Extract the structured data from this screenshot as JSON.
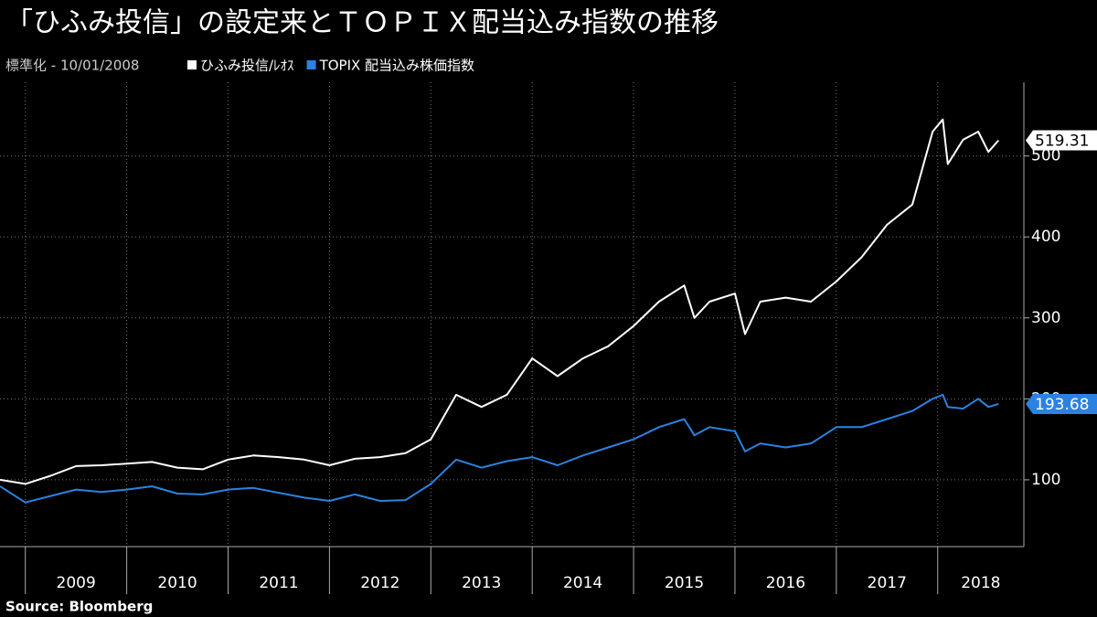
{
  "chart_data": {
    "type": "line",
    "title": "「ひふみ投信」の設定来とＴＯＰＩＸ配当込み指数の推移",
    "subtitle": "標準化 - 10/01/2008",
    "source": "Source:  Bloomberg",
    "x": [
      2008.75,
      2009.0,
      2009.25,
      2009.5,
      2009.75,
      2010.0,
      2010.25,
      2010.5,
      2010.75,
      2011.0,
      2011.25,
      2011.5,
      2011.75,
      2012.0,
      2012.25,
      2012.5,
      2012.75,
      2013.0,
      2013.25,
      2013.5,
      2013.75,
      2014.0,
      2014.25,
      2014.5,
      2014.75,
      2015.0,
      2015.25,
      2015.5,
      2015.6,
      2015.75,
      2016.0,
      2016.1,
      2016.25,
      2016.5,
      2016.75,
      2017.0,
      2017.25,
      2017.5,
      2017.75,
      2017.95,
      2018.05,
      2018.1,
      2018.25,
      2018.4,
      2018.5,
      2018.6
    ],
    "series": [
      {
        "name": "ひふみ投信/ﾚｵｽ",
        "color": "#ffffff",
        "values": [
          100,
          95,
          105,
          117,
          118,
          120,
          122,
          115,
          113,
          125,
          130,
          128,
          125,
          118,
          126,
          128,
          133,
          150,
          205,
          190,
          205,
          250,
          228,
          250,
          265,
          290,
          320,
          340,
          300,
          320,
          330,
          280,
          320,
          325,
          320,
          345,
          375,
          415,
          440,
          530,
          545,
          490,
          520,
          530,
          505,
          519.31
        ]
      },
      {
        "name": "TOPIX 配当込み株価指数",
        "color": "#2b82e0",
        "values": [
          92,
          72,
          80,
          88,
          85,
          88,
          92,
          83,
          82,
          88,
          90,
          84,
          78,
          74,
          82,
          74,
          75,
          95,
          125,
          115,
          123,
          128,
          118,
          130,
          140,
          150,
          165,
          175,
          155,
          165,
          160,
          135,
          145,
          140,
          145,
          165,
          165,
          175,
          185,
          200,
          205,
          190,
          188,
          200,
          190,
          193.68
        ]
      }
    ],
    "xlim": [
      2008.75,
      2018.85
    ],
    "xticks": [
      2009,
      2010,
      2011,
      2012,
      2013,
      2014,
      2015,
      2016,
      2017,
      2018
    ],
    "ylim": [
      17.5,
      591
    ],
    "yticks": [
      100,
      200,
      300,
      400,
      500
    ],
    "grid": true
  }
}
